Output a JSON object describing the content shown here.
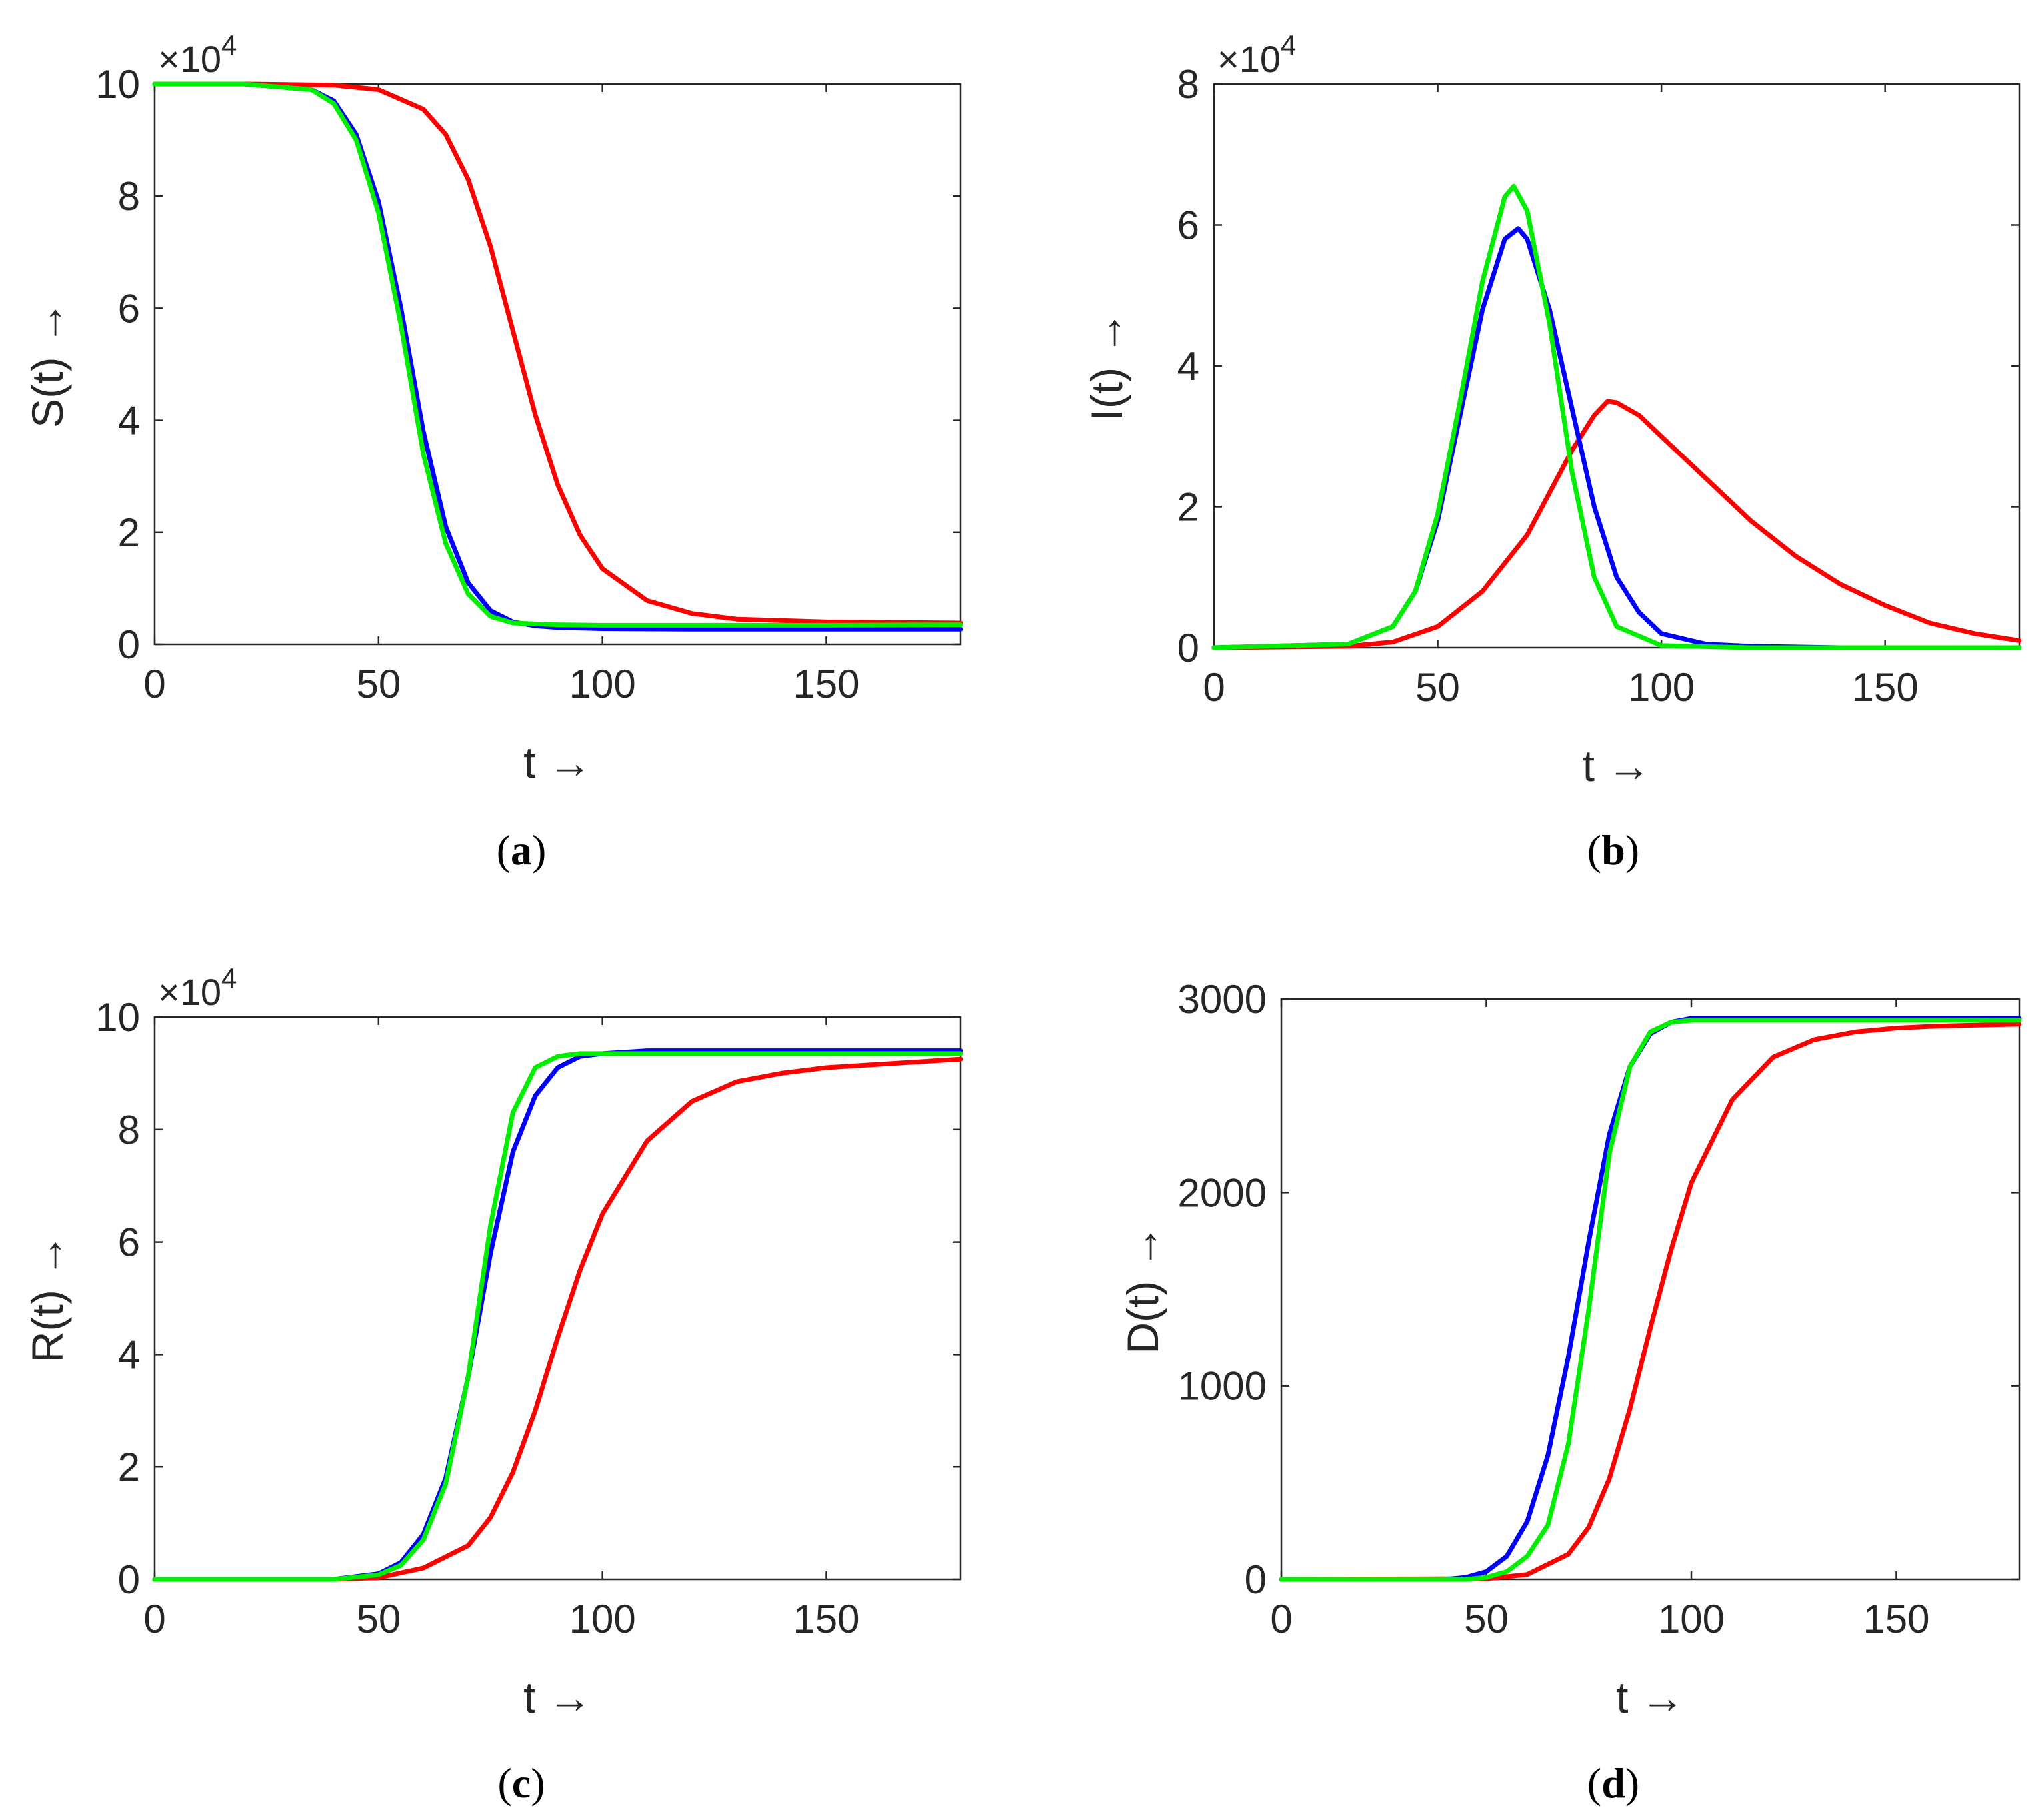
{
  "chart_data": [
    {
      "id": "a",
      "type": "line",
      "caption_letter": "a",
      "xlabel": "t →",
      "ylabel": "S(t) →",
      "exponent_label": "×10",
      "exponent_power": "4",
      "xlim": [
        0,
        180
      ],
      "ylim": [
        0,
        10
      ],
      "xticks": [
        "0",
        "50",
        "100",
        "150"
      ],
      "yticks": [
        "0",
        "2",
        "4",
        "6",
        "8",
        "10"
      ],
      "series": [
        {
          "name": "red",
          "color": "#ff0000",
          "x": [
            0,
            20,
            40,
            50,
            60,
            65,
            70,
            75,
            80,
            85,
            90,
            95,
            100,
            110,
            120,
            130,
            150,
            180
          ],
          "y": [
            10.0,
            10.0,
            9.98,
            9.9,
            9.55,
            9.1,
            8.3,
            7.1,
            5.6,
            4.1,
            2.85,
            1.95,
            1.35,
            0.78,
            0.55,
            0.45,
            0.4,
            0.38
          ]
        },
        {
          "name": "blue",
          "color": "#0000ff",
          "x": [
            0,
            20,
            35,
            40,
            45,
            50,
            55,
            60,
            65,
            70,
            75,
            80,
            85,
            90,
            100,
            120,
            150,
            180
          ],
          "y": [
            10.0,
            10.0,
            9.9,
            9.7,
            9.1,
            7.9,
            6.0,
            3.8,
            2.1,
            1.1,
            0.6,
            0.4,
            0.33,
            0.3,
            0.28,
            0.27,
            0.27,
            0.27
          ]
        },
        {
          "name": "green",
          "color": "#00ee00",
          "x": [
            0,
            20,
            35,
            40,
            45,
            50,
            55,
            60,
            65,
            70,
            75,
            80,
            90,
            100,
            120,
            150,
            180
          ],
          "y": [
            10.0,
            10.0,
            9.9,
            9.65,
            9.0,
            7.7,
            5.7,
            3.4,
            1.8,
            0.9,
            0.5,
            0.38,
            0.35,
            0.34,
            0.34,
            0.34,
            0.35
          ]
        }
      ]
    },
    {
      "id": "b",
      "type": "line",
      "caption_letter": "b",
      "xlabel": "t →",
      "ylabel": "I(t) →",
      "exponent_label": "×10",
      "exponent_power": "4",
      "xlim": [
        0,
        180
      ],
      "ylim": [
        0,
        8
      ],
      "xticks": [
        "0",
        "50",
        "100",
        "150"
      ],
      "yticks": [
        "0",
        "2",
        "4",
        "6",
        "8"
      ],
      "series": [
        {
          "name": "red",
          "color": "#ff0000",
          "x": [
            0,
            30,
            40,
            50,
            60,
            70,
            75,
            80,
            85,
            88,
            90,
            95,
            100,
            110,
            120,
            130,
            140,
            150,
            160,
            170,
            180
          ],
          "y": [
            0,
            0.02,
            0.08,
            0.3,
            0.8,
            1.6,
            2.2,
            2.8,
            3.3,
            3.5,
            3.48,
            3.3,
            3.0,
            2.4,
            1.8,
            1.3,
            0.9,
            0.6,
            0.35,
            0.2,
            0.1
          ]
        },
        {
          "name": "blue",
          "color": "#0000ff",
          "x": [
            0,
            30,
            40,
            45,
            50,
            55,
            60,
            65,
            68,
            70,
            75,
            80,
            85,
            90,
            95,
            100,
            110,
            120,
            140,
            180
          ],
          "y": [
            0,
            0.05,
            0.3,
            0.8,
            1.8,
            3.3,
            4.8,
            5.8,
            5.95,
            5.8,
            4.8,
            3.4,
            2.0,
            1.0,
            0.5,
            0.2,
            0.05,
            0.02,
            0,
            0
          ]
        },
        {
          "name": "green",
          "color": "#00ee00",
          "x": [
            0,
            30,
            40,
            45,
            50,
            55,
            60,
            65,
            67,
            70,
            75,
            80,
            85,
            90,
            100,
            120,
            180
          ],
          "y": [
            0,
            0.05,
            0.3,
            0.8,
            1.9,
            3.5,
            5.2,
            6.4,
            6.55,
            6.2,
            4.6,
            2.5,
            1.0,
            0.3,
            0.03,
            0,
            0
          ]
        }
      ]
    },
    {
      "id": "c",
      "type": "line",
      "caption_letter": "c",
      "xlabel": "t →",
      "ylabel": "R(t) →",
      "exponent_label": "×10",
      "exponent_power": "4",
      "xlim": [
        0,
        180
      ],
      "ylim": [
        0,
        10
      ],
      "xticks": [
        "0",
        "50",
        "100",
        "150"
      ],
      "yticks": [
        "0",
        "2",
        "4",
        "6",
        "8",
        "10"
      ],
      "series": [
        {
          "name": "red",
          "color": "#ff0000",
          "x": [
            0,
            40,
            50,
            60,
            70,
            75,
            80,
            85,
            90,
            95,
            100,
            110,
            120,
            130,
            140,
            150,
            160,
            180
          ],
          "y": [
            0,
            0,
            0.03,
            0.2,
            0.6,
            1.1,
            1.9,
            3.0,
            4.3,
            5.5,
            6.5,
            7.8,
            8.5,
            8.85,
            9.0,
            9.1,
            9.15,
            9.25
          ]
        },
        {
          "name": "blue",
          "color": "#0000ff",
          "x": [
            0,
            40,
            50,
            55,
            60,
            65,
            70,
            75,
            80,
            85,
            90,
            95,
            100,
            110,
            120,
            150,
            180
          ],
          "y": [
            0,
            0,
            0.1,
            0.3,
            0.8,
            1.8,
            3.6,
            5.8,
            7.6,
            8.6,
            9.1,
            9.3,
            9.35,
            9.4,
            9.4,
            9.4,
            9.4
          ]
        },
        {
          "name": "green",
          "color": "#00ee00",
          "x": [
            0,
            40,
            50,
            55,
            60,
            65,
            70,
            75,
            80,
            85,
            90,
            95,
            100,
            120,
            150,
            180
          ],
          "y": [
            0,
            0,
            0.08,
            0.25,
            0.7,
            1.7,
            3.6,
            6.3,
            8.3,
            9.1,
            9.3,
            9.35,
            9.35,
            9.35,
            9.35,
            9.35
          ]
        }
      ]
    },
    {
      "id": "d",
      "type": "line",
      "caption_letter": "d",
      "xlabel": "t →",
      "ylabel": "D(t) →",
      "xlim": [
        0,
        180
      ],
      "ylim": [
        0,
        3000
      ],
      "xticks": [
        "0",
        "50",
        "100",
        "150"
      ],
      "yticks": [
        "0",
        "1000",
        "2000",
        "3000"
      ],
      "series": [
        {
          "name": "red",
          "color": "#ff0000",
          "x": [
            0,
            50,
            60,
            70,
            75,
            80,
            85,
            90,
            95,
            100,
            110,
            120,
            130,
            140,
            150,
            160,
            180
          ],
          "y": [
            0,
            3,
            25,
            130,
            270,
            520,
            880,
            1300,
            1700,
            2050,
            2480,
            2700,
            2790,
            2830,
            2850,
            2860,
            2870
          ]
        },
        {
          "name": "blue",
          "color": "#0000ff",
          "x": [
            0,
            40,
            45,
            50,
            55,
            60,
            65,
            70,
            75,
            80,
            85,
            90,
            95,
            100,
            110,
            120,
            150,
            180
          ],
          "y": [
            0,
            0,
            10,
            40,
            120,
            300,
            640,
            1150,
            1750,
            2300,
            2650,
            2820,
            2880,
            2900,
            2900,
            2900,
            2900,
            2900
          ]
        },
        {
          "name": "green",
          "color": "#00ee00",
          "x": [
            0,
            45,
            50,
            55,
            60,
            65,
            70,
            75,
            80,
            85,
            90,
            95,
            100,
            110,
            120,
            150,
            180
          ],
          "y": [
            0,
            0,
            10,
            40,
            120,
            280,
            700,
            1400,
            2200,
            2650,
            2830,
            2880,
            2890,
            2890,
            2890,
            2890,
            2890
          ]
        }
      ]
    }
  ]
}
